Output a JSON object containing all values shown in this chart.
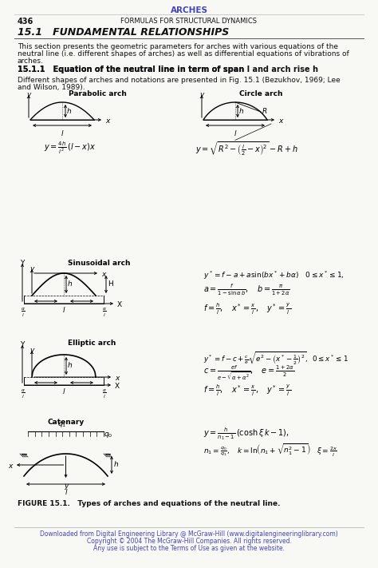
{
  "page_title": "ARCHES",
  "page_number": "436",
  "page_header": "FORMULAS FOR STRUCTURAL DYNAMICS",
  "section_title": "15.1   FUNDAMENTAL RELATIONSHIPS",
  "subsection_title": "15.1.1   Equation of the neutral line in term of span l and arch rise h",
  "intro_text": "This section presents the geometric parameters for arches with various equations of the\nneutral line (i.e. different shapes of arches) as well as differential equations of vibrations of\narches.",
  "ref_text": "Different shapes of arches and notations are presented in Fig. 15.1 (Bezukhov, 1969; Lee\nand Wilson, 1989).",
  "figure_caption": "FIGURE 15.1.   Types of arches and equations of the neutral line.",
  "footer_text": "Downloaded from Digital Engineering Library @ McGraw-Hill (www.digitalengineeringlibrary.com)\nCopyright © 2004 The McGraw-Hill Companies. All rights reserved.\nAny use is subject to the Terms of Use as given at the website.",
  "title_color": "#4444bb",
  "footer_color": "#4444bb",
  "bg_color": "#f8f8f5",
  "text_color": "#111111"
}
